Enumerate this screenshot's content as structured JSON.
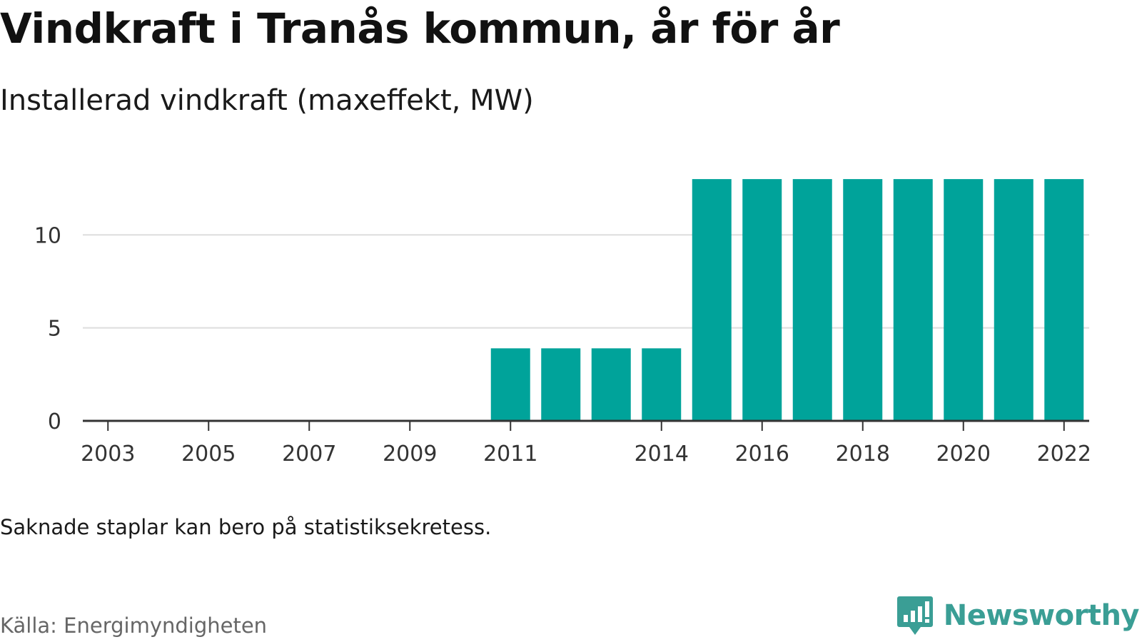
{
  "title": "Vindkraft i Tranås kommun, år för år",
  "subtitle": "Installerad vindkraft (maxeffekt, MW)",
  "note": "Saknade staplar kan bero på statistiksekretess.",
  "source": "Källa: Energimyndigheten",
  "brand": {
    "name": "Newsworthy",
    "icon": "newsworthy-logo-icon",
    "color": "#3a9e95"
  },
  "chart_data": {
    "type": "bar",
    "title": "Vindkraft i Tranås kommun, år för år",
    "subtitle": "Installerad vindkraft (maxeffekt, MW)",
    "xlabel": "",
    "ylabel": "",
    "categories": [
      2003,
      2004,
      2005,
      2006,
      2007,
      2008,
      2009,
      2010,
      2011,
      2012,
      2013,
      2014,
      2015,
      2016,
      2017,
      2018,
      2019,
      2020,
      2021,
      2022
    ],
    "values": [
      0,
      0,
      0,
      0,
      0,
      0,
      0,
      0,
      3.9,
      3.9,
      3.9,
      3.9,
      13.0,
      13.0,
      13.0,
      13.0,
      13.0,
      13.0,
      13.0,
      13.0
    ],
    "x_tick_labels": [
      "2003",
      "2005",
      "2007",
      "2009",
      "2011",
      "2014",
      "2016",
      "2018",
      "2020",
      "2022"
    ],
    "y_ticks": [
      0,
      5,
      10
    ],
    "ylim": [
      0,
      14
    ],
    "bar_color": "#00a39a",
    "grid": true,
    "legend": "none"
  }
}
